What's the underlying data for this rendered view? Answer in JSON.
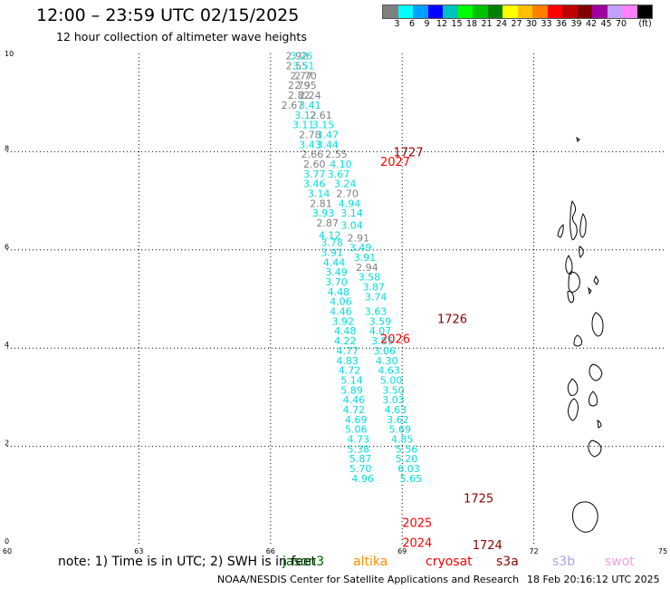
{
  "header": {
    "title": "12:00 – 23:59 UTC 02/15/2025",
    "subtitle": "12 hour collection of altimeter wave heights"
  },
  "legend": {
    "colors": [
      "#808080",
      "#00ffff",
      "#00a0ff",
      "#0000ff",
      "#00c0c0",
      "#00ff00",
      "#00c000",
      "#008000",
      "#ffff00",
      "#ffc000",
      "#ff8000",
      "#ff0000",
      "#c00000",
      "#800000",
      "#a000a0",
      "#c0a0ff",
      "#ff80ff",
      "#000000"
    ],
    "labels": [
      "3",
      "6",
      "9",
      "12",
      "15",
      "18",
      "21",
      "24",
      "27",
      "30",
      "33",
      "36",
      "39",
      "42",
      "45",
      "70",
      "(ft)"
    ]
  },
  "axes": {
    "x_ticks": [
      "60",
      "63",
      "66",
      "69",
      "72",
      "75"
    ],
    "y_ticks": [
      "0",
      "2",
      "4",
      "6",
      "8",
      "10"
    ],
    "x_values": [
      60,
      63,
      66,
      69,
      72,
      75
    ],
    "y_values": [
      0,
      2,
      4,
      6,
      8,
      10
    ]
  },
  "footer": {
    "note": "note:  1) Time is in UTC; 2) SWH is in feet",
    "satellites": [
      {
        "name": "jason3",
        "color": "#006400"
      },
      {
        "name": "altika",
        "color": "#ff8c00"
      },
      {
        "name": "cryosat",
        "color": "#ff0000"
      },
      {
        "name": "s3a",
        "color": "#8b0000"
      },
      {
        "name": "s3b",
        "color": "#b0a0e0"
      },
      {
        "name": "swot",
        "color": "#f0a0e0"
      }
    ],
    "credit": "NOAA/NESDIS Center for Satellite Applications and Research",
    "timestamp": "18 Feb 20:16:12 UTC 2025"
  },
  "passes": [
    {
      "label": "1727",
      "lon": 68.8,
      "lat": 8.0,
      "color": "#8b0000"
    },
    {
      "label": "2027",
      "lon": 68.5,
      "lat": 7.8,
      "color": "#ff0000"
    },
    {
      "label": "1726",
      "lon": 69.8,
      "lat": 4.6,
      "color": "#8b0000"
    },
    {
      "label": "2026",
      "lon": 68.5,
      "lat": 4.2,
      "color": "#ff0000"
    },
    {
      "label": "1725",
      "lon": 70.4,
      "lat": 0.95,
      "color": "#8b0000"
    },
    {
      "label": "2025",
      "lon": 69.0,
      "lat": 0.45,
      "color": "#ff0000"
    },
    {
      "label": "1724",
      "lon": 70.6,
      "lat": 0.0,
      "color": "#8b0000"
    },
    {
      "label": "2024",
      "lon": 69.0,
      "lat": 0.05,
      "color": "#ff0000"
    }
  ],
  "observations": [
    {
      "v": "2.92",
      "lon": 66.6,
      "lat": 9.95,
      "c": "#808080"
    },
    {
      "v": "3.26",
      "lon": 66.7,
      "lat": 9.95,
      "c": "#00dddd"
    },
    {
      "v": "2.55",
      "lon": 66.6,
      "lat": 9.75,
      "c": "#808080"
    },
    {
      "v": "3.51",
      "lon": 66.75,
      "lat": 9.75,
      "c": "#00dddd"
    },
    {
      "v": "2.77",
      "lon": 66.7,
      "lat": 9.55,
      "c": "#808080"
    },
    {
      "v": "2.70",
      "lon": 66.8,
      "lat": 9.55,
      "c": "#808080"
    },
    {
      "v": "2.79",
      "lon": 66.65,
      "lat": 9.35,
      "c": "#808080"
    },
    {
      "v": "2.95",
      "lon": 66.8,
      "lat": 9.35,
      "c": "#808080"
    },
    {
      "v": "2.82",
      "lon": 66.65,
      "lat": 9.15,
      "c": "#808080"
    },
    {
      "v": "2.24",
      "lon": 66.9,
      "lat": 9.15,
      "c": "#808080"
    },
    {
      "v": "2.67",
      "lon": 66.5,
      "lat": 8.95,
      "c": "#808080"
    },
    {
      "v": "3.41",
      "lon": 66.9,
      "lat": 8.95,
      "c": "#00dddd"
    },
    {
      "v": "3.12",
      "lon": 66.8,
      "lat": 8.75,
      "c": "#00dddd"
    },
    {
      "v": "2.61",
      "lon": 67.15,
      "lat": 8.75,
      "c": "#808080"
    },
    {
      "v": "3.11",
      "lon": 66.75,
      "lat": 8.55,
      "c": "#00dddd"
    },
    {
      "v": "3.15",
      "lon": 67.2,
      "lat": 8.55,
      "c": "#00dddd"
    },
    {
      "v": "2.78",
      "lon": 66.9,
      "lat": 8.35,
      "c": "#808080"
    },
    {
      "v": "3.47",
      "lon": 67.3,
      "lat": 8.35,
      "c": "#00dddd"
    },
    {
      "v": "3.43",
      "lon": 66.9,
      "lat": 8.15,
      "c": "#00dddd"
    },
    {
      "v": "3.44",
      "lon": 67.3,
      "lat": 8.15,
      "c": "#00dddd"
    },
    {
      "v": "2.66",
      "lon": 66.95,
      "lat": 7.95,
      "c": "#808080"
    },
    {
      "v": "2.55",
      "lon": 67.5,
      "lat": 7.95,
      "c": "#808080"
    },
    {
      "v": "2.60",
      "lon": 67.0,
      "lat": 7.75,
      "c": "#808080"
    },
    {
      "v": "4.10",
      "lon": 67.6,
      "lat": 7.75,
      "c": "#00dddd"
    },
    {
      "v": "3.77",
      "lon": 67.0,
      "lat": 7.55,
      "c": "#00dddd"
    },
    {
      "v": "3.67",
      "lon": 67.55,
      "lat": 7.55,
      "c": "#00dddd"
    },
    {
      "v": "3.46",
      "lon": 67.0,
      "lat": 7.35,
      "c": "#00dddd"
    },
    {
      "v": "3.24",
      "lon": 67.7,
      "lat": 7.35,
      "c": "#00dddd"
    },
    {
      "v": "3.14",
      "lon": 67.1,
      "lat": 7.15,
      "c": "#00dddd"
    },
    {
      "v": "2.70",
      "lon": 67.75,
      "lat": 7.15,
      "c": "#808080"
    },
    {
      "v": "2.81",
      "lon": 67.15,
      "lat": 6.95,
      "c": "#808080"
    },
    {
      "v": "4.94",
      "lon": 67.8,
      "lat": 6.95,
      "c": "#00dddd"
    },
    {
      "v": "3.93",
      "lon": 67.2,
      "lat": 6.75,
      "c": "#00dddd"
    },
    {
      "v": "3.14",
      "lon": 67.85,
      "lat": 6.75,
      "c": "#00dddd"
    },
    {
      "v": "2.87",
      "lon": 67.3,
      "lat": 6.55,
      "c": "#808080"
    },
    {
      "v": "3.04",
      "lon": 67.85,
      "lat": 6.5,
      "c": "#00dddd"
    },
    {
      "v": "4.12",
      "lon": 67.35,
      "lat": 6.3,
      "c": "#00dddd"
    },
    {
      "v": "2.91",
      "lon": 68.0,
      "lat": 6.25,
      "c": "#808080"
    },
    {
      "v": "3.78",
      "lon": 67.4,
      "lat": 6.15,
      "c": "#00dddd"
    },
    {
      "v": "3.49",
      "lon": 68.05,
      "lat": 6.05,
      "c": "#00dddd"
    },
    {
      "v": "3.91",
      "lon": 67.4,
      "lat": 5.95,
      "c": "#00dddd"
    },
    {
      "v": "3.91",
      "lon": 68.15,
      "lat": 5.85,
      "c": "#00dddd"
    },
    {
      "v": "4.44",
      "lon": 67.45,
      "lat": 5.75,
      "c": "#00dddd"
    },
    {
      "v": "2.94",
      "lon": 68.2,
      "lat": 5.65,
      "c": "#808080"
    },
    {
      "v": "3.49",
      "lon": 67.5,
      "lat": 5.55,
      "c": "#00dddd"
    },
    {
      "v": "3.58",
      "lon": 68.25,
      "lat": 5.45,
      "c": "#00dddd"
    },
    {
      "v": "3.70",
      "lon": 67.5,
      "lat": 5.35,
      "c": "#00dddd"
    },
    {
      "v": "3.87",
      "lon": 68.35,
      "lat": 5.25,
      "c": "#00dddd"
    },
    {
      "v": "4.48",
      "lon": 67.55,
      "lat": 5.15,
      "c": "#00dddd"
    },
    {
      "v": "3.74",
      "lon": 68.4,
      "lat": 5.05,
      "c": "#00dddd"
    },
    {
      "v": "4.06",
      "lon": 67.6,
      "lat": 4.95,
      "c": "#00dddd"
    },
    {
      "v": "3.63",
      "lon": 68.4,
      "lat": 4.75,
      "c": "#00dddd"
    },
    {
      "v": "4.46",
      "lon": 67.6,
      "lat": 4.75,
      "c": "#00dddd"
    },
    {
      "v": "3.59",
      "lon": 68.5,
      "lat": 4.55,
      "c": "#00dddd"
    },
    {
      "v": "3.92",
      "lon": 67.65,
      "lat": 4.55,
      "c": "#00dddd"
    },
    {
      "v": "4.07",
      "lon": 68.5,
      "lat": 4.35,
      "c": "#00dddd"
    },
    {
      "v": "4.48",
      "lon": 67.7,
      "lat": 4.35,
      "c": "#00dddd"
    },
    {
      "v": "3.85",
      "lon": 68.55,
      "lat": 4.15,
      "c": "#00dddd"
    },
    {
      "v": "4.22",
      "lon": 67.7,
      "lat": 4.15,
      "c": "#00dddd"
    },
    {
      "v": "3.06",
      "lon": 68.6,
      "lat": 3.95,
      "c": "#00dddd"
    },
    {
      "v": "4.77",
      "lon": 67.75,
      "lat": 3.95,
      "c": "#00dddd"
    },
    {
      "v": "4.30",
      "lon": 68.65,
      "lat": 3.75,
      "c": "#00dddd"
    },
    {
      "v": "4.83",
      "lon": 67.75,
      "lat": 3.75,
      "c": "#00dddd"
    },
    {
      "v": "4.63",
      "lon": 68.7,
      "lat": 3.55,
      "c": "#00dddd"
    },
    {
      "v": "4.72",
      "lon": 67.8,
      "lat": 3.55,
      "c": "#00dddd"
    },
    {
      "v": "5.00",
      "lon": 68.75,
      "lat": 3.35,
      "c": "#00dddd"
    },
    {
      "v": "5.14",
      "lon": 67.85,
      "lat": 3.35,
      "c": "#00dddd"
    },
    {
      "v": "3.50",
      "lon": 68.8,
      "lat": 3.15,
      "c": "#00dddd"
    },
    {
      "v": "5.89",
      "lon": 67.85,
      "lat": 3.15,
      "c": "#00dddd"
    },
    {
      "v": "3.03",
      "lon": 68.8,
      "lat": 2.95,
      "c": "#00dddd"
    },
    {
      "v": "4.46",
      "lon": 67.9,
      "lat": 2.95,
      "c": "#00dddd"
    },
    {
      "v": "4.63",
      "lon": 68.85,
      "lat": 2.75,
      "c": "#00dddd"
    },
    {
      "v": "4.72",
      "lon": 67.9,
      "lat": 2.75,
      "c": "#00dddd"
    },
    {
      "v": "3.62",
      "lon": 68.9,
      "lat": 2.55,
      "c": "#00dddd"
    },
    {
      "v": "4.69",
      "lon": 67.95,
      "lat": 2.55,
      "c": "#00dddd"
    },
    {
      "v": "5.69",
      "lon": 68.95,
      "lat": 2.35,
      "c": "#00dddd"
    },
    {
      "v": "5.06",
      "lon": 67.95,
      "lat": 2.35,
      "c": "#00dddd"
    },
    {
      "v": "4.85",
      "lon": 69.0,
      "lat": 2.15,
      "c": "#00dddd"
    },
    {
      "v": "4.73",
      "lon": 68.0,
      "lat": 2.15,
      "c": "#00dddd"
    },
    {
      "v": "5.56",
      "lon": 69.1,
      "lat": 1.95,
      "c": "#00dddd"
    },
    {
      "v": "5.38",
      "lon": 68.0,
      "lat": 1.95,
      "c": "#00dddd"
    },
    {
      "v": "5.20",
      "lon": 69.1,
      "lat": 1.75,
      "c": "#00dddd"
    },
    {
      "v": "5.87",
      "lon": 68.05,
      "lat": 1.75,
      "c": "#00dddd"
    },
    {
      "v": "6.03",
      "lon": 69.15,
      "lat": 1.55,
      "c": "#00dddd"
    },
    {
      "v": "5.70",
      "lon": 68.05,
      "lat": 1.55,
      "c": "#00dddd"
    },
    {
      "v": "5.65",
      "lon": 69.2,
      "lat": 1.35,
      "c": "#00dddd"
    },
    {
      "v": "4.96",
      "lon": 68.1,
      "lat": 1.35,
      "c": "#00dddd"
    }
  ]
}
